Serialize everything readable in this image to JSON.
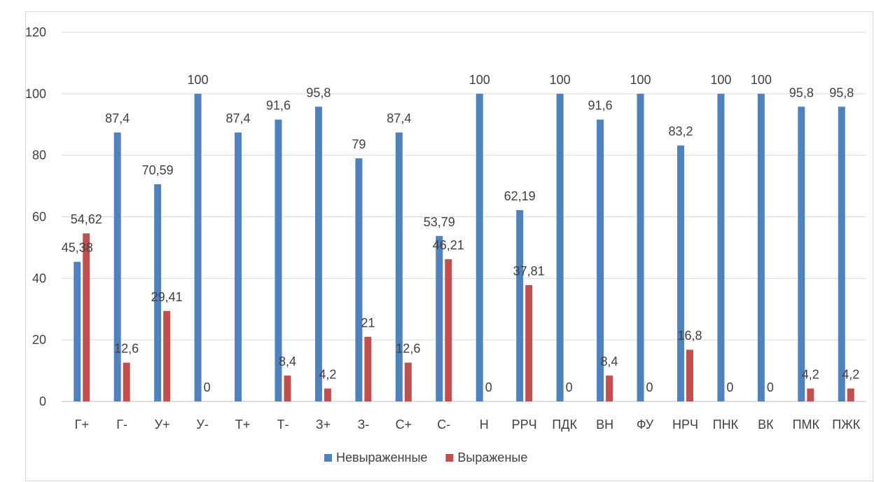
{
  "chart_data": {
    "type": "bar",
    "title": "",
    "xlabel": "",
    "ylabel": "",
    "ylim": [
      0,
      120
    ],
    "yticks": [
      0,
      20,
      40,
      60,
      80,
      100,
      120
    ],
    "grid": true,
    "legend_position": "bottom",
    "categories": [
      "Г+",
      "Г-",
      "У+",
      "У-",
      "Т+",
      "Т-",
      "З+",
      "З-",
      "С+",
      "С-",
      "Н",
      "РРЧ",
      "ПДК",
      "ВН",
      "ФУ",
      "НРЧ",
      "ПНК",
      "ВК",
      "ПМК",
      "ПЖК"
    ],
    "series": [
      {
        "name": "Невыраженные",
        "color": "#4F81BD",
        "values": [
          45.38,
          87.4,
          70.59,
          100,
          87.4,
          91.6,
          95.8,
          79,
          87.4,
          53.79,
          100,
          62.19,
          100,
          91.6,
          100,
          83.2,
          100,
          100,
          95.8,
          95.8
        ],
        "labels": [
          "45,38",
          "87,4",
          "70,59",
          "100",
          "87,4",
          "91,6",
          "95,8",
          "79",
          "87,4",
          "53,79",
          "100",
          "62,19",
          "100",
          "91,6",
          "100",
          "83,2",
          "100",
          "100",
          "95,8",
          "95,8"
        ]
      },
      {
        "name": "Выраженые",
        "color": "#C0504D",
        "values": [
          54.62,
          12.6,
          29.41,
          0,
          null,
          8.4,
          4.2,
          21,
          12.6,
          46.21,
          0,
          37.81,
          0,
          8.4,
          0,
          16.8,
          0,
          0,
          4.2,
          4.2
        ],
        "labels": [
          "54,62",
          "12,6",
          "29,41",
          "0",
          "",
          "8,4",
          "4,2",
          "21",
          "12,6",
          "46,21",
          "0",
          "37,81",
          "0",
          "8,4",
          "0",
          "16,8",
          "0",
          "0",
          "4,2",
          "4,2"
        ]
      }
    ]
  }
}
